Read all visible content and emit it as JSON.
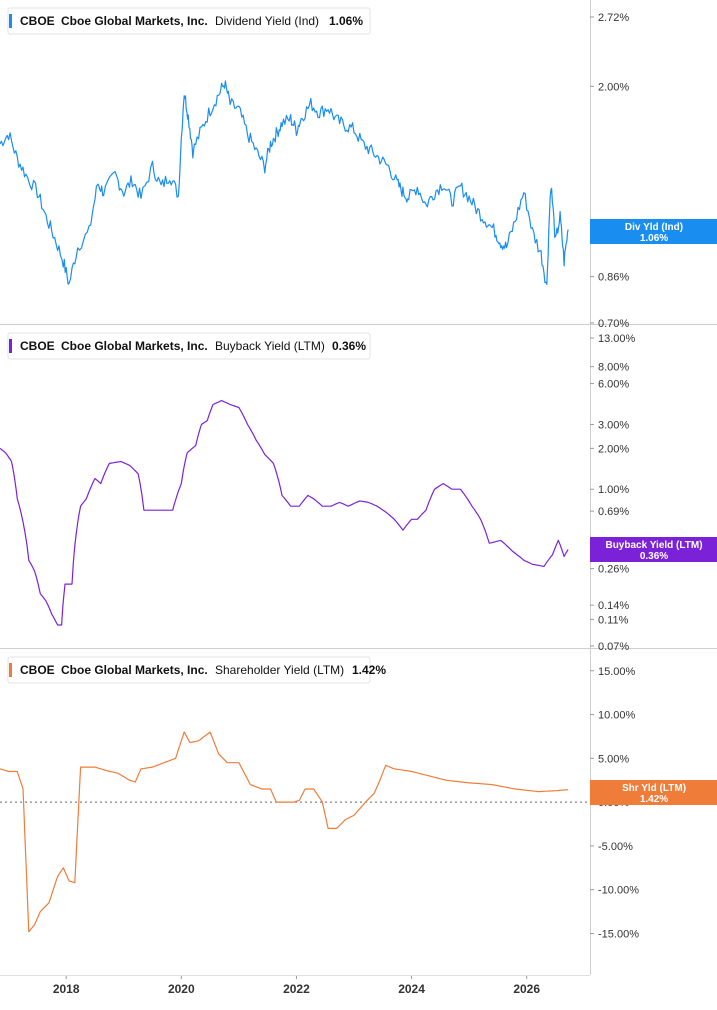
{
  "chart_data": [
    {
      "type": "line",
      "ticker": "CBOE",
      "company": "Cboe Global Markets, Inc.",
      "metric": "Dividend Yield (Ind)",
      "current": "1.06%",
      "tag_label": "Div Yld (Ind)",
      "tag_value": "1.06%",
      "color": "#1a8ef0",
      "scale": "log",
      "ylim": [
        0.7,
        2.72
      ],
      "y_ticks": [
        {
          "value": 2.72,
          "label": "2.72%"
        },
        {
          "value": 2.0,
          "label": "2.00%"
        },
        {
          "value": 1.06,
          "label": "1.06%"
        },
        {
          "value": 0.86,
          "label": "0.86%"
        },
        {
          "value": 0.7,
          "label": "0.70%"
        }
      ],
      "series": [
        {
          "x": [
            2016.85,
            2017.0,
            2017.15,
            2017.3,
            2017.5,
            2017.65,
            2017.8,
            2017.95,
            2018.05,
            2018.2,
            2018.4,
            2018.55,
            2018.65,
            2018.85,
            2019.0,
            2019.15,
            2019.3,
            2019.5,
            2019.65,
            2019.8,
            2019.95,
            2020.05,
            2020.12,
            2020.2,
            2020.35,
            2020.5,
            2020.65,
            2020.75,
            2020.85,
            2021.0,
            2021.15,
            2021.3,
            2021.45,
            2021.55,
            2021.65,
            2021.75,
            2021.9,
            2022.0,
            2022.1,
            2022.25,
            2022.4,
            2022.55,
            2022.7,
            2022.85,
            2023.0,
            2023.15,
            2023.3,
            2023.45,
            2023.6,
            2023.75,
            2023.85,
            2023.95,
            2024.1,
            2024.25,
            2024.4,
            2024.55,
            2024.7,
            2024.85,
            2025.0,
            2025.15,
            2025.3,
            2025.45,
            2025.55,
            2025.65,
            2025.8,
            2025.95,
            2026.1,
            2026.25,
            2026.35,
            2026.42,
            2026.5,
            2026.58,
            2026.65,
            2026.72
          ],
          "y": [
            1.55,
            1.62,
            1.45,
            1.35,
            1.25,
            1.12,
            1.02,
            0.92,
            0.83,
            0.98,
            1.05,
            1.3,
            1.25,
            1.35,
            1.25,
            1.32,
            1.22,
            1.4,
            1.28,
            1.35,
            1.23,
            1.95,
            1.75,
            1.5,
            1.65,
            1.8,
            1.93,
            2.03,
            1.85,
            1.8,
            1.62,
            1.5,
            1.4,
            1.55,
            1.62,
            1.7,
            1.73,
            1.65,
            1.75,
            1.85,
            1.78,
            1.82,
            1.72,
            1.68,
            1.65,
            1.55,
            1.5,
            1.45,
            1.4,
            1.3,
            1.25,
            1.22,
            1.28,
            1.18,
            1.25,
            1.3,
            1.2,
            1.28,
            1.22,
            1.15,
            1.1,
            1.05,
            1.0,
            0.98,
            1.1,
            1.25,
            1.05,
            0.95,
            0.82,
            1.3,
            1.0,
            1.12,
            0.92,
            1.06
          ]
        }
      ]
    },
    {
      "type": "line",
      "ticker": "CBOE",
      "company": "Cboe Global Markets, Inc.",
      "metric": "Buyback Yield (LTM)",
      "current": "0.36%",
      "tag_label": "Buyback Yield (LTM)",
      "tag_value": "0.36%",
      "color": "#7b22d8",
      "scale": "log",
      "ylim": [
        0.07,
        13.0
      ],
      "y_ticks": [
        {
          "value": 13.0,
          "label": "13.00%"
        },
        {
          "value": 8.0,
          "label": "8.00%"
        },
        {
          "value": 6.0,
          "label": "6.00%"
        },
        {
          "value": 3.0,
          "label": "3.00%"
        },
        {
          "value": 2.0,
          "label": "2.00%"
        },
        {
          "value": 1.0,
          "label": "1.00%"
        },
        {
          "value": 0.69,
          "label": "0.69%"
        },
        {
          "value": 0.26,
          "label": "0.26%"
        },
        {
          "value": 0.14,
          "label": "0.14%"
        },
        {
          "value": 0.11,
          "label": "0.11%"
        },
        {
          "value": 0.07,
          "label": "0.07%"
        }
      ],
      "series": [
        {
          "x": [
            2016.85,
            2016.95,
            2017.05,
            2017.15,
            2017.35,
            2017.45,
            2017.55,
            2017.65,
            2017.75,
            2017.85,
            2017.92,
            2017.98,
            2018.1,
            2018.25,
            2018.35,
            2018.5,
            2018.6,
            2018.75,
            2018.95,
            2019.1,
            2019.25,
            2019.35,
            2019.55,
            2019.85,
            2020.0,
            2020.1,
            2020.25,
            2020.35,
            2020.45,
            2020.55,
            2020.7,
            2020.85,
            2021.0,
            2021.15,
            2021.3,
            2021.45,
            2021.6,
            2021.75,
            2021.9,
            2022.05,
            2022.2,
            2022.3,
            2022.45,
            2022.6,
            2022.75,
            2022.9,
            2023.1,
            2023.25,
            2023.4,
            2023.55,
            2023.7,
            2023.85,
            2024.0,
            2024.1,
            2024.25,
            2024.4,
            2024.55,
            2024.7,
            2024.85,
            2025.05,
            2025.2,
            2025.35,
            2025.55,
            2025.75,
            2025.95,
            2026.1,
            2026.3,
            2026.45,
            2026.55,
            2026.65,
            2026.72
          ],
          "y": [
            2.0,
            1.85,
            1.6,
            0.85,
            0.3,
            0.25,
            0.17,
            0.15,
            0.12,
            0.1,
            0.1,
            0.2,
            0.2,
            0.75,
            0.85,
            1.2,
            1.1,
            1.55,
            1.6,
            1.5,
            1.3,
            0.7,
            0.7,
            0.7,
            1.1,
            1.85,
            2.1,
            3.0,
            3.2,
            4.2,
            4.5,
            4.2,
            4.0,
            3.0,
            2.3,
            1.8,
            1.55,
            0.9,
            0.75,
            0.75,
            0.9,
            0.85,
            0.75,
            0.75,
            0.8,
            0.75,
            0.82,
            0.8,
            0.75,
            0.68,
            0.6,
            0.5,
            0.6,
            0.6,
            0.7,
            1.0,
            1.1,
            1.0,
            1.0,
            0.75,
            0.6,
            0.4,
            0.42,
            0.35,
            0.3,
            0.28,
            0.27,
            0.33,
            0.42,
            0.32,
            0.36
          ]
        }
      ]
    },
    {
      "type": "line",
      "ticker": "CBOE",
      "company": "Cboe Global Markets, Inc.",
      "metric": "Shareholder Yield (LTM)",
      "current": "1.42%",
      "tag_label": "Shr Yld (LTM)",
      "tag_value": "1.42%",
      "color": "#f07c3a",
      "scale": "linear",
      "ylim": [
        -17,
        16
      ],
      "zero_line": true,
      "y_ticks": [
        {
          "value": 15,
          "label": "15.00%"
        },
        {
          "value": 10,
          "label": "10.00%"
        },
        {
          "value": 5,
          "label": "5.00%"
        },
        {
          "value": 0,
          "label": "0.00%"
        },
        {
          "value": -5,
          "label": "-5.00%"
        },
        {
          "value": -10,
          "label": "-10.00%"
        },
        {
          "value": -15,
          "label": "-15.00%"
        }
      ],
      "series": [
        {
          "x": [
            2016.85,
            2017.0,
            2017.15,
            2017.25,
            2017.35,
            2017.45,
            2017.55,
            2017.7,
            2017.85,
            2017.95,
            2018.05,
            2018.15,
            2018.25,
            2018.35,
            2018.5,
            2018.7,
            2018.9,
            2019.1,
            2019.2,
            2019.3,
            2019.5,
            2019.7,
            2019.9,
            2020.05,
            2020.15,
            2020.3,
            2020.5,
            2020.65,
            2020.8,
            2021.0,
            2021.2,
            2021.4,
            2021.55,
            2021.65,
            2021.8,
            2021.95,
            2022.05,
            2022.15,
            2022.3,
            2022.45,
            2022.55,
            2022.7,
            2022.85,
            2023.0,
            2023.2,
            2023.35,
            2023.45,
            2023.55,
            2023.7,
            2024.0,
            2024.3,
            2024.6,
            2025.0,
            2025.4,
            2025.8,
            2026.2,
            2026.5,
            2026.72
          ],
          "y": [
            3.8,
            3.5,
            3.5,
            1.5,
            -14.8,
            -14.0,
            -12.5,
            -11.5,
            -8.5,
            -7.5,
            -9.0,
            -9.2,
            4.0,
            4.0,
            4.0,
            3.6,
            3.3,
            2.5,
            2.3,
            3.8,
            4.0,
            4.5,
            5.0,
            8.0,
            6.8,
            7.0,
            8.0,
            5.5,
            4.5,
            4.5,
            2.0,
            1.5,
            1.5,
            0.0,
            0.0,
            0.0,
            0.2,
            1.5,
            1.5,
            0.0,
            -3.0,
            -3.0,
            -2.0,
            -1.5,
            0.0,
            1.0,
            2.5,
            4.2,
            3.8,
            3.5,
            3.0,
            2.5,
            2.2,
            2.0,
            1.5,
            1.2,
            1.3,
            1.42
          ]
        }
      ]
    }
  ],
  "x_axis": {
    "ticks": [
      {
        "value": 2018,
        "label": "2018"
      },
      {
        "value": 2020,
        "label": "2020"
      },
      {
        "value": 2022,
        "label": "2022"
      },
      {
        "value": 2024,
        "label": "2024"
      },
      {
        "value": 2026,
        "label": "2026"
      }
    ]
  }
}
